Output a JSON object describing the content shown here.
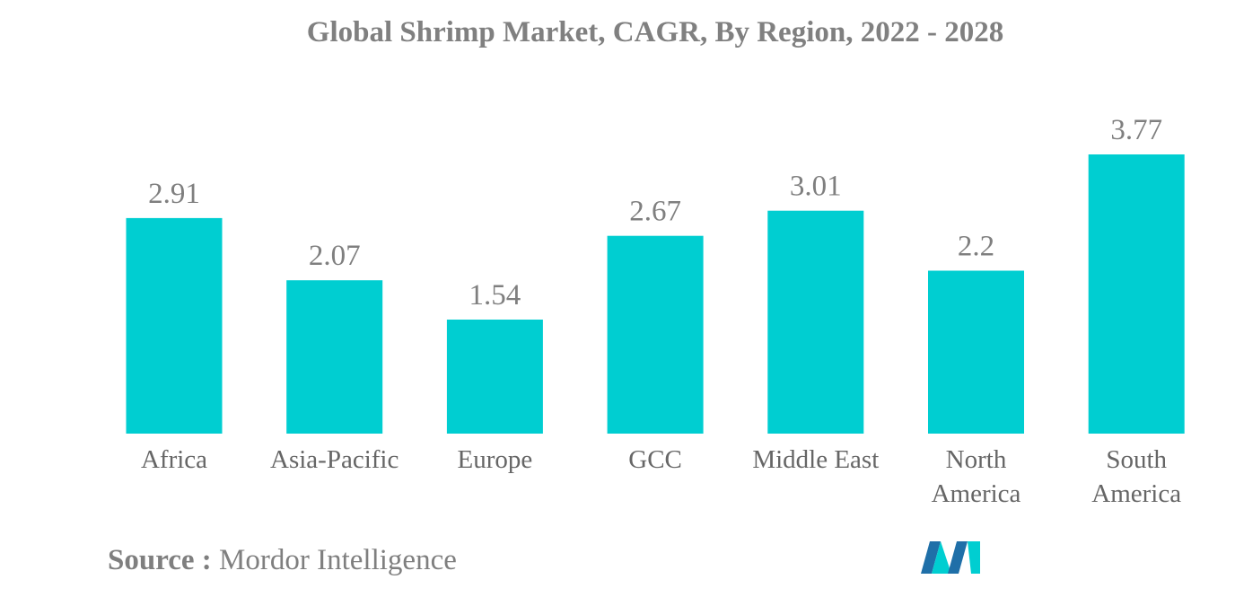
{
  "chart_data": {
    "type": "bar",
    "title": "Global Shrimp Market, CAGR, By Region, 2022 - 2028",
    "categories": [
      "Africa",
      "Asia-Pacific",
      "Europe",
      "GCC",
      "Middle East",
      "North America",
      "South America"
    ],
    "category_lines": [
      [
        "Africa"
      ],
      [
        "Asia-Pacific"
      ],
      [
        "Europe"
      ],
      [
        "GCC"
      ],
      [
        "Middle East"
      ],
      [
        "North",
        "America"
      ],
      [
        "South",
        "America"
      ]
    ],
    "values": [
      2.91,
      2.07,
      1.54,
      2.67,
      3.01,
      2.2,
      3.77
    ],
    "value_labels": [
      "2.91",
      "2.07",
      "1.54",
      "2.67",
      "3.01",
      "2.2",
      "3.77"
    ],
    "xlabel": "",
    "ylabel": "",
    "ylim": [
      0,
      3.77
    ],
    "grid": false,
    "bar_color": "#00CED1"
  },
  "footer": {
    "source_label": "Source :",
    "source_value": "Mordor Intelligence"
  },
  "logo": {
    "icon": "mordor-intelligence-logo-icon",
    "colors": [
      "#1F6FA8",
      "#00CED1"
    ]
  }
}
